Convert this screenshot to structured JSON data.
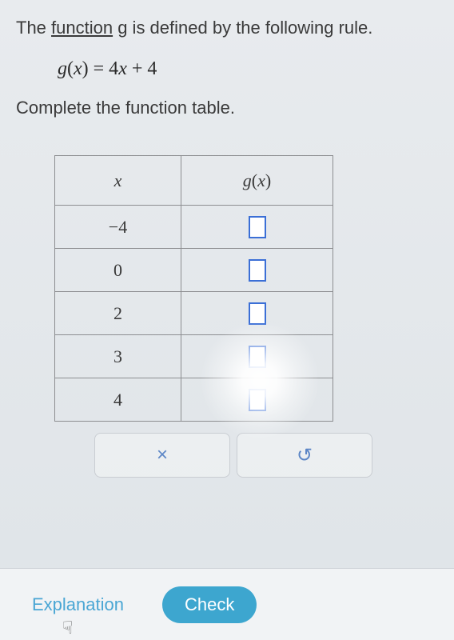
{
  "intro": {
    "prefix": "The ",
    "underlined": "function",
    "suffix": " g is defined by the following rule."
  },
  "equation": "g(x) = 4x + 4",
  "instruction": "Complete the function table.",
  "table": {
    "headers": {
      "x": "x",
      "g": "g(x)"
    },
    "rows": [
      {
        "x": "−4"
      },
      {
        "x": "0"
      },
      {
        "x": "2"
      },
      {
        "x": "3"
      },
      {
        "x": "4"
      }
    ]
  },
  "actions": {
    "clear": "×",
    "undo": "↺"
  },
  "footer": {
    "explanation": "Explanation",
    "check": "Check"
  },
  "style": {
    "input_border": "#3b6fd6",
    "accent": "#3da6cf",
    "link": "#4aa6d4",
    "table_border": "#8d8e91"
  }
}
